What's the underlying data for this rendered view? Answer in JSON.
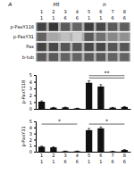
{
  "chart_data": [
    {
      "type": "heatmap",
      "annotations": [
        "A",
        "Ht",
        "n"
      ],
      "categories": [
        "1",
        "2",
        "3",
        "4",
        "5",
        "6",
        "7",
        "8"
      ],
      "category_subs": [
        "1",
        "1",
        "6",
        "6",
        "1",
        "1",
        "6",
        "6"
      ],
      "rows": [
        "p-PaxY118",
        "p-PaxY31",
        "Pax",
        "b-tub"
      ],
      "color": "#b0b0b0",
      "values": [
        [
          0.82,
          0.88,
          0.72,
          0.68,
          0.84,
          0.8,
          0.72,
          0.7
        ],
        [
          0.68,
          0.38,
          0.28,
          0.22,
          0.72,
          0.62,
          0.52,
          0.48
        ],
        [
          0.82,
          0.8,
          0.74,
          0.74,
          0.8,
          0.8,
          0.74,
          0.74
        ],
        [
          0.72,
          0.72,
          0.68,
          0.68,
          0.72,
          0.72,
          0.68,
          0.68
        ]
      ],
      "tick_labels": false
    },
    {
      "type": "bar",
      "y_label": "p-PaxY118",
      "ylim": [
        0,
        5
      ],
      "yticks": [
        0,
        1,
        2,
        3,
        4,
        5
      ],
      "values": [
        1.05,
        0.18,
        0.22,
        0.08,
        3.85,
        3.3,
        0.18,
        0.28
      ],
      "error": [
        0.12,
        0.04,
        0.04,
        0.03,
        0.28,
        0.28,
        0.04,
        0.06
      ],
      "color": "#111111",
      "tick_labels": "y",
      "sig_brackets": [
        {
          "x1": 4,
          "x2": 7,
          "y": 4.55
        },
        {
          "x1": 4,
          "x2": 7,
          "y": 4.9,
          "label": "**"
        }
      ]
    },
    {
      "type": "bar",
      "y_label": "p-PaxY31",
      "categories": [
        "1",
        "2",
        "3",
        "4",
        "5",
        "6",
        "7",
        "8"
      ],
      "category_subs": [
        "1",
        "1",
        "6",
        "6",
        "1",
        "1",
        "6",
        "6"
      ],
      "ylim": [
        0,
        5
      ],
      "yticks": [
        0,
        1,
        2,
        3,
        4,
        5
      ],
      "values": [
        0.82,
        0.72,
        0.08,
        0.08,
        3.55,
        3.85,
        0.05,
        0.28
      ],
      "error": [
        0.1,
        0.08,
        0.03,
        0.03,
        0.28,
        0.22,
        0.02,
        0.08
      ],
      "color": "#111111",
      "sig_brackets": [
        {
          "x1": 0,
          "x2": 3,
          "y": 4.55,
          "label": "*"
        },
        {
          "x1": 4,
          "x2": 7,
          "y": 4.55,
          "label": "*"
        }
      ]
    }
  ]
}
